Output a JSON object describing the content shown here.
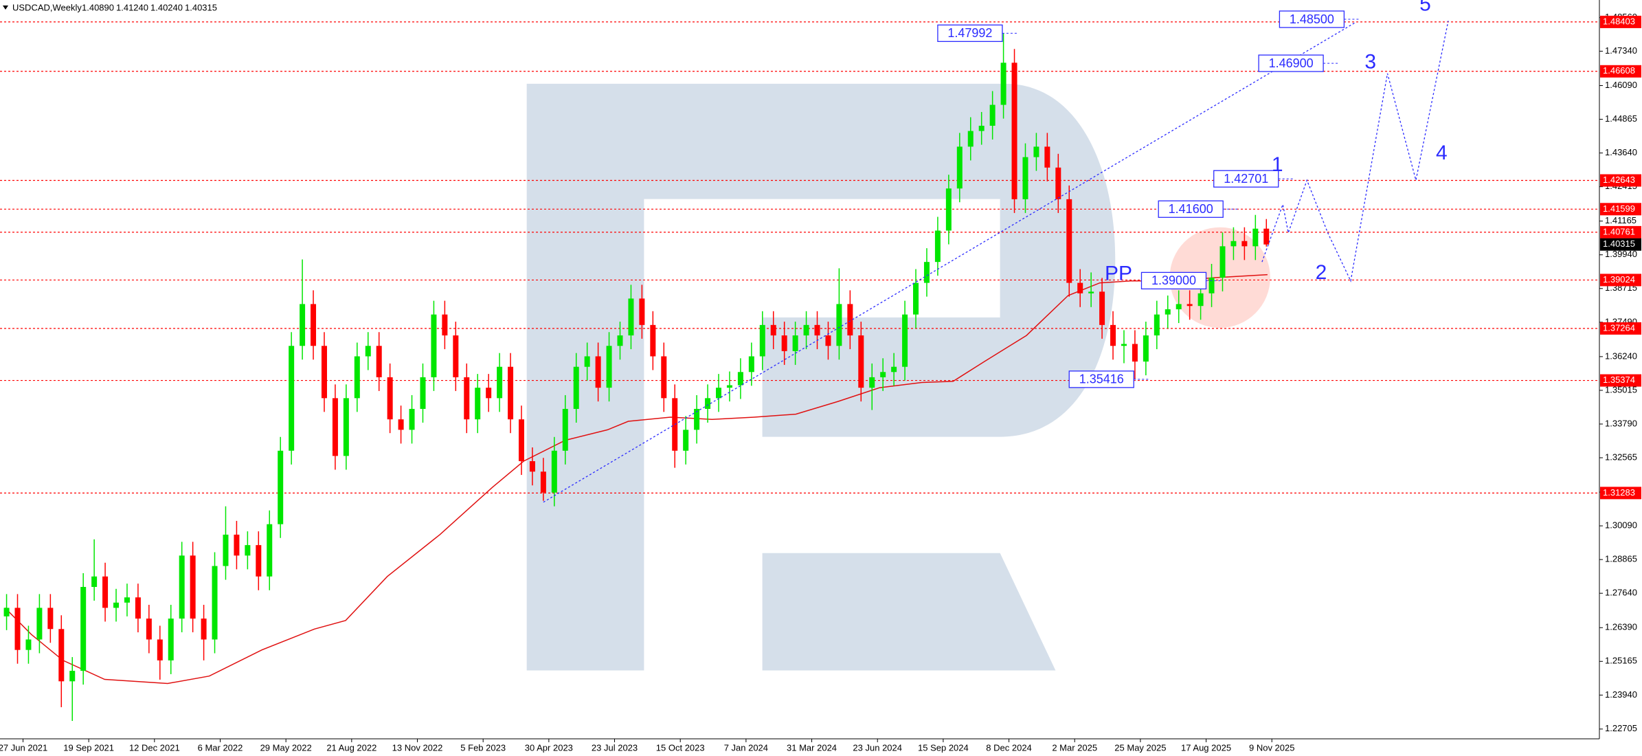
{
  "chart_data": {
    "type": "candlestick",
    "symbol": "USDCAD,Weekly",
    "header_values": [
      "1.40890",
      "1.41240",
      "1.40240",
      "1.40315"
    ],
    "xlim": [
      -4.2,
      287.8
    ],
    "ylim": [
      1.2235,
      1.492
    ],
    "xticks": [
      {
        "value": 0,
        "label": "27 Jun 2021"
      },
      {
        "value": 12,
        "label": "19 Sep 2021"
      },
      {
        "value": 24,
        "label": "12 Dec 2021"
      },
      {
        "value": 36,
        "label": "6 Mar 2022"
      },
      {
        "value": 48,
        "label": "29 May 2022"
      },
      {
        "value": 60,
        "label": "21 Aug 2022"
      },
      {
        "value": 72,
        "label": "13 Nov 2022"
      },
      {
        "value": 84,
        "label": "5 Feb 2023"
      },
      {
        "value": 96,
        "label": "30 Apr 2023"
      },
      {
        "value": 108,
        "label": "23 Jul 2023"
      },
      {
        "value": 120,
        "label": "15 Oct 2023"
      },
      {
        "value": 132,
        "label": "7 Jan 2024"
      },
      {
        "value": 144,
        "label": "31 Mar 2024"
      },
      {
        "value": 156,
        "label": "23 Jun 2024"
      },
      {
        "value": 168,
        "label": "15 Sep 2024"
      },
      {
        "value": 180,
        "label": "8 Dec 2024"
      },
      {
        "value": 192,
        "label": "2 Mar 2025"
      },
      {
        "value": 204,
        "label": "25 May 2025"
      },
      {
        "value": 216,
        "label": "17 Aug 2025"
      },
      {
        "value": 228,
        "label": "9 Nov 2025"
      }
    ],
    "yticks": [
      {
        "value": 1.4856,
        "label": "1.48560"
      },
      {
        "value": 1.4734,
        "label": "1.47340"
      },
      {
        "value": 1.4609,
        "label": "1.46090"
      },
      1.44865,
      {
        "value": 1.4364,
        "label": "1.43640"
      },
      1.42415,
      1.41165,
      {
        "value": 1.3994,
        "label": "1.39940"
      },
      1.38715,
      {
        "value": 1.3749,
        "label": "1.37490"
      },
      {
        "value": 1.3624,
        "label": "1.36240"
      },
      1.35015,
      {
        "value": 1.3379,
        "label": "1.33790"
      },
      1.32565,
      1.31315,
      {
        "value": 1.3009,
        "label": "1.30090"
      },
      1.28865,
      {
        "value": 1.2764,
        "label": "1.27640"
      },
      {
        "value": 1.2639,
        "label": "1.26390"
      },
      1.25165,
      {
        "value": 1.2394,
        "label": "1.23940"
      },
      1.22705
    ],
    "candles": {
      "up_color": "#00e600",
      "down_color": "#ff0000",
      "x": [
        -3,
        -1,
        1,
        3,
        5,
        7,
        9,
        11,
        13,
        15,
        17,
        19,
        21,
        23,
        25,
        27,
        29,
        31,
        33,
        35,
        37,
        39,
        41,
        43,
        45,
        47,
        49,
        51,
        53,
        55,
        57,
        59,
        61,
        63,
        65,
        67,
        69,
        71,
        73,
        75,
        77,
        79,
        81,
        83,
        85,
        87,
        89,
        91,
        93,
        95,
        97,
        99,
        101,
        103,
        105,
        107,
        109,
        111,
        113,
        115,
        117,
        119,
        121,
        123,
        125,
        127,
        129,
        131,
        133,
        135,
        137,
        139,
        141,
        143,
        145,
        147,
        149,
        151,
        153,
        155,
        157,
        159,
        161,
        163,
        165,
        167,
        169,
        171,
        173,
        175,
        177,
        179,
        181,
        183,
        185,
        187,
        189,
        191,
        193,
        195,
        197,
        199,
        201,
        203,
        205,
        207,
        209,
        211,
        213,
        215,
        217,
        219,
        221,
        223,
        225,
        227
      ],
      "ohlc": [
        [
          1.268,
          1.2761,
          1.263,
          1.2711
        ],
        [
          1.2711,
          1.2761,
          1.2508,
          1.2558
        ],
        [
          1.2558,
          1.2646,
          1.2508,
          1.2596
        ],
        [
          1.2596,
          1.2761,
          1.2546,
          1.2711
        ],
        [
          1.2711,
          1.2761,
          1.2584,
          1.2634
        ],
        [
          1.2634,
          1.2684,
          1.235,
          1.2444
        ],
        [
          1.2444,
          1.2532,
          1.23,
          1.2482
        ],
        [
          1.2482,
          1.2837,
          1.2432,
          1.2787
        ],
        [
          1.2787,
          1.296,
          1.2737,
          1.2825
        ],
        [
          1.2825,
          1.2875,
          1.2661,
          1.2711
        ],
        [
          1.2711,
          1.278,
          1.2661,
          1.273
        ],
        [
          1.273,
          1.2799,
          1.268,
          1.2749
        ],
        [
          1.2749,
          1.2799,
          1.2622,
          1.2672
        ],
        [
          1.2672,
          1.2722,
          1.2546,
          1.2596
        ],
        [
          1.2596,
          1.2646,
          1.245,
          1.252
        ],
        [
          1.252,
          1.2722,
          1.247,
          1.2672
        ],
        [
          1.2672,
          1.2951,
          1.2622,
          1.2901
        ],
        [
          1.2901,
          1.2951,
          1.2622,
          1.2672
        ],
        [
          1.2672,
          1.2722,
          1.252,
          1.2596
        ],
        [
          1.2596,
          1.2913,
          1.2546,
          1.2863
        ],
        [
          1.2863,
          1.308,
          1.2813,
          1.2977
        ],
        [
          1.2977,
          1.3027,
          1.2851,
          1.2901
        ],
        [
          1.2901,
          1.2989,
          1.2851,
          1.2939
        ],
        [
          1.2939,
          1.2989,
          1.2775,
          1.2825
        ],
        [
          1.2825,
          1.3065,
          1.2775,
          1.3015
        ],
        [
          1.3015,
          1.3332,
          1.2965,
          1.3282
        ],
        [
          1.3282,
          1.3713,
          1.3232,
          1.3663
        ],
        [
          1.3663,
          1.3977,
          1.3613,
          1.3815
        ],
        [
          1.3815,
          1.3865,
          1.3613,
          1.3663
        ],
        [
          1.3663,
          1.3713,
          1.3423,
          1.3473
        ],
        [
          1.3473,
          1.3523,
          1.3213,
          1.3263
        ],
        [
          1.3263,
          1.3523,
          1.3213,
          1.3473
        ],
        [
          1.3473,
          1.3675,
          1.3423,
          1.3625
        ],
        [
          1.3625,
          1.3713,
          1.3575,
          1.3663
        ],
        [
          1.3663,
          1.3713,
          1.3499,
          1.3549
        ],
        [
          1.3549,
          1.3599,
          1.3346,
          1.3396
        ],
        [
          1.3396,
          1.3446,
          1.3308,
          1.3358
        ],
        [
          1.3358,
          1.3484,
          1.3308,
          1.3434
        ],
        [
          1.3434,
          1.3599,
          1.3384,
          1.3549
        ],
        [
          1.3549,
          1.3827,
          1.3499,
          1.3777
        ],
        [
          1.3777,
          1.3827,
          1.3651,
          1.3701
        ],
        [
          1.3701,
          1.3751,
          1.3499,
          1.3549
        ],
        [
          1.3549,
          1.3599,
          1.3346,
          1.3396
        ],
        [
          1.3396,
          1.3561,
          1.3346,
          1.3511
        ],
        [
          1.3511,
          1.3561,
          1.3423,
          1.3473
        ],
        [
          1.3473,
          1.3637,
          1.3423,
          1.3587
        ],
        [
          1.3587,
          1.3637,
          1.3346,
          1.3396
        ],
        [
          1.3396,
          1.3446,
          1.3194,
          1.3244
        ],
        [
          1.3244,
          1.3294,
          1.3156,
          1.3206
        ],
        [
          1.3206,
          1.3256,
          1.31,
          1.313
        ],
        [
          1.313,
          1.3332,
          1.308,
          1.3282
        ],
        [
          1.3282,
          1.3484,
          1.3232,
          1.3434
        ],
        [
          1.3434,
          1.3637,
          1.3384,
          1.3587
        ],
        [
          1.3587,
          1.3675,
          1.3537,
          1.3625
        ],
        [
          1.3625,
          1.3675,
          1.3461,
          1.3511
        ],
        [
          1.3511,
          1.3713,
          1.3461,
          1.3663
        ],
        [
          1.3663,
          1.3751,
          1.3613,
          1.3701
        ],
        [
          1.3701,
          1.3885,
          1.3651,
          1.3835
        ],
        [
          1.3835,
          1.3885,
          1.3689,
          1.3739
        ],
        [
          1.3739,
          1.3789,
          1.3575,
          1.3625
        ],
        [
          1.3625,
          1.3675,
          1.3423,
          1.3473
        ],
        [
          1.3473,
          1.3523,
          1.322,
          1.3282
        ],
        [
          1.3282,
          1.3408,
          1.3232,
          1.3358
        ],
        [
          1.3358,
          1.3484,
          1.3308,
          1.3434
        ],
        [
          1.3434,
          1.3523,
          1.3384,
          1.3473
        ],
        [
          1.3473,
          1.3561,
          1.3423,
          1.3511
        ],
        [
          1.3511,
          1.357,
          1.3461,
          1.352
        ],
        [
          1.352,
          1.3618,
          1.347,
          1.3568
        ],
        [
          1.3568,
          1.3675,
          1.3518,
          1.3625
        ],
        [
          1.3625,
          1.3789,
          1.3575,
          1.3739
        ],
        [
          1.3739,
          1.3789,
          1.3651,
          1.3701
        ],
        [
          1.3701,
          1.3751,
          1.3594,
          1.3644
        ],
        [
          1.3644,
          1.3751,
          1.3594,
          1.3701
        ],
        [
          1.3701,
          1.3789,
          1.3651,
          1.3739
        ],
        [
          1.3739,
          1.3789,
          1.3651,
          1.3701
        ],
        [
          1.3701,
          1.3751,
          1.3613,
          1.3663
        ],
        [
          1.3663,
          1.3945,
          1.3613,
          1.3815
        ],
        [
          1.3815,
          1.3865,
          1.3651,
          1.3701
        ],
        [
          1.3701,
          1.3751,
          1.3461,
          1.3511
        ],
        [
          1.3511,
          1.3599,
          1.343,
          1.3549
        ],
        [
          1.3549,
          1.3618,
          1.3499,
          1.3568
        ],
        [
          1.3568,
          1.3637,
          1.3518,
          1.3587
        ],
        [
          1.3587,
          1.3827,
          1.3537,
          1.3777
        ],
        [
          1.3777,
          1.3942,
          1.3727,
          1.3892
        ],
        [
          1.3892,
          1.4018,
          1.3842,
          1.3968
        ],
        [
          1.3968,
          1.4132,
          1.3918,
          1.4082
        ],
        [
          1.4082,
          1.4285,
          1.4032,
          1.4235
        ],
        [
          1.4235,
          1.4437,
          1.4185,
          1.4387
        ],
        [
          1.4387,
          1.4494,
          1.4337,
          1.4444
        ],
        [
          1.4444,
          1.4513,
          1.4394,
          1.4463
        ],
        [
          1.4463,
          1.4589,
          1.4413,
          1.4539
        ],
        [
          1.4539,
          1.47992,
          1.4489,
          1.4692
        ],
        [
          1.4692,
          1.4742,
          1.4146,
          1.4196
        ],
        [
          1.4196,
          1.4399,
          1.4146,
          1.4349
        ],
        [
          1.4349,
          1.4437,
          1.4299,
          1.4387
        ],
        [
          1.4387,
          1.4437,
          1.4261,
          1.4311
        ],
        [
          1.4311,
          1.4361,
          1.4146,
          1.4196
        ],
        [
          1.4196,
          1.4246,
          1.3842,
          1.3892
        ],
        [
          1.3892,
          1.3942,
          1.3804,
          1.3854
        ],
        [
          1.3854,
          1.393,
          1.3804,
          1.386
        ],
        [
          1.386,
          1.391,
          1.3689,
          1.3739
        ],
        [
          1.3739,
          1.3789,
          1.3613,
          1.3663
        ],
        [
          1.3663,
          1.372,
          1.36,
          1.367
        ],
        [
          1.367,
          1.372,
          1.35416,
          1.3606
        ],
        [
          1.3606,
          1.3751,
          1.3556,
          1.3701
        ],
        [
          1.3701,
          1.3827,
          1.3651,
          1.3777
        ],
        [
          1.3777,
          1.3846,
          1.3727,
          1.3796
        ],
        [
          1.3796,
          1.3865,
          1.3746,
          1.3815
        ],
        [
          1.3815,
          1.3865,
          1.3758,
          1.3808
        ],
        [
          1.3808,
          1.3904,
          1.3758,
          1.3854
        ],
        [
          1.3854,
          1.3961,
          1.3804,
          1.3911
        ],
        [
          1.3911,
          1.4075,
          1.3861,
          1.4025
        ],
        [
          1.4025,
          1.4094,
          1.3975,
          1.4044
        ],
        [
          1.4044,
          1.4094,
          1.3975,
          1.4025
        ],
        [
          1.4025,
          1.4139,
          1.3975,
          1.4089
        ],
        [
          1.4089,
          1.4124,
          1.4024,
          1.40315
        ]
      ]
    },
    "moving_average": {
      "color": "#e01010",
      "x": [
        -3.3,
        1.5,
        7.3,
        14.9,
        26.4,
        34.0,
        43.6,
        53.2,
        58.9,
        66.5,
        76.1,
        85.7,
        91.4,
        99.0,
        106.7,
        110.5,
        118.2,
        125.8,
        133.5,
        141.1,
        148.8,
        156.4,
        164.1,
        169.8,
        175.5,
        183.2,
        190.8,
        196.6,
        202.3,
        209.9,
        217.6,
        227.2
      ],
      "values": [
        1.2711,
        1.2615,
        1.252,
        1.2451,
        1.2436,
        1.2463,
        1.2558,
        1.2634,
        1.2665,
        1.2825,
        1.2977,
        1.3149,
        1.3244,
        1.332,
        1.3358,
        1.3389,
        1.3404,
        1.3396,
        1.3404,
        1.3415,
        1.3461,
        1.3511,
        1.353,
        1.3534,
        1.3606,
        1.3701,
        1.3846,
        1.3892,
        1.3899,
        1.3899,
        1.3911,
        1.3922
      ]
    },
    "trend_line": {
      "color": "#2b2bff",
      "x": [
        95,
        243.4
      ],
      "values": [
        1.3095,
        1.484
      ]
    },
    "forecast": {
      "color": "#2b2bff",
      "x": [
        226.2,
        230,
        231,
        234.4,
        238.2,
        242.4,
        249.1,
        254.3,
        260.2
      ],
      "values": [
        1.3968,
        1.4177,
        1.4074,
        1.4265,
        1.4074,
        1.3899,
        1.4653,
        1.4265,
        1.4844
      ]
    },
    "levels": {
      "color": "#ff0000",
      "values": [
        1.48403,
        1.46608,
        1.42643,
        1.41599,
        1.40761,
        1.39024,
        1.37264,
        1.35374,
        1.31283
      ]
    },
    "current_price": 1.40315,
    "price_labels": [
      {
        "value": 1.47992,
        "label": "1.47992",
        "x": 167
      },
      {
        "value": 1.485,
        "label": "1.48500",
        "x": 229.4
      },
      {
        "value": 1.469,
        "label": "1.46900",
        "x": 225.6
      },
      {
        "value": 1.42701,
        "label": "1.42701",
        "x": 217.4
      },
      {
        "value": 1.416,
        "label": "1.41600",
        "x": 207.3
      },
      {
        "value": 1.39,
        "label": "1.39000",
        "x": 204.2
      },
      {
        "value": 1.35416,
        "label": "1.35416",
        "x": 191
      }
    ],
    "pivot_label": {
      "text": "PP",
      "x": 200,
      "y": 1.3922
    },
    "wave_labels": [
      {
        "text": "1",
        "x": 229,
        "y": 1.4318
      },
      {
        "text": "2",
        "x": 237,
        "y": 1.3926
      },
      {
        "text": "3",
        "x": 246,
        "y": 1.4691
      },
      {
        "text": "4",
        "x": 259,
        "y": 1.436
      },
      {
        "text": "5",
        "x": 256,
        "y": 1.4901
      }
    ]
  }
}
